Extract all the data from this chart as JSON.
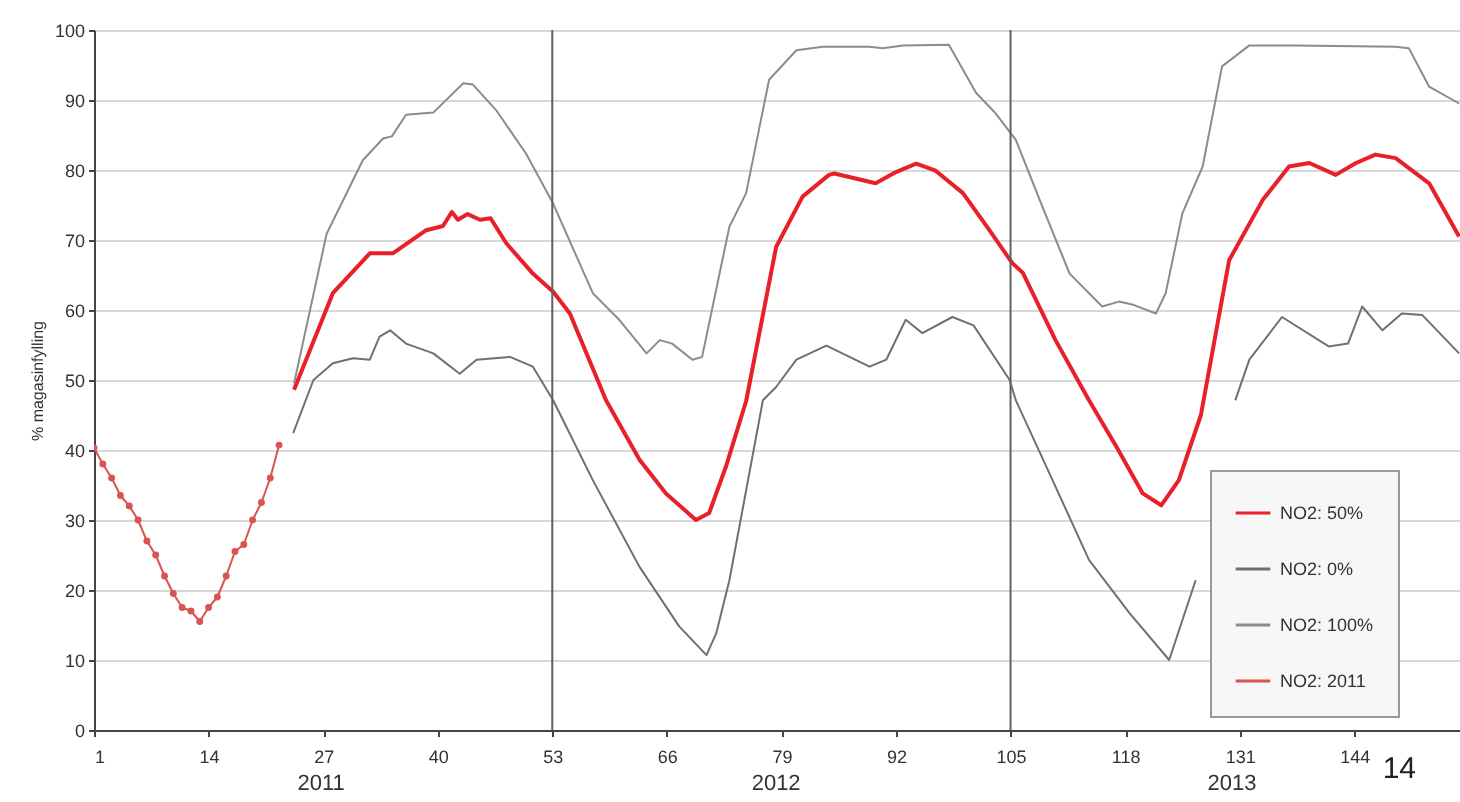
{
  "chart_data": {
    "type": "line",
    "ylabel": "% magasinfylling",
    "xlim": [
      1,
      156
    ],
    "xticks": [
      1,
      14,
      27,
      40,
      53,
      66,
      79,
      92,
      105,
      118,
      131,
      144
    ],
    "ylim": [
      0,
      100
    ],
    "yticks": [
      0,
      10,
      20,
      30,
      40,
      50,
      60,
      70,
      80,
      90,
      100
    ],
    "grid": "y",
    "legend": "bottom right",
    "ref_lines": [
      {
        "axis": "x",
        "value": 53,
        "color": "#606060"
      },
      {
        "axis": "x",
        "value": 105,
        "color": "#606060"
      }
    ],
    "annotations": [
      "2011",
      "2012",
      "2013",
      "14"
    ],
    "series": [
      {
        "name": "NO2: 50%",
        "color": "#e8202a",
        "x": [
          23.7,
          28.1,
          32.3,
          34.9,
          38.7,
          40.6,
          41.6,
          42.3,
          43.4,
          44.8,
          46,
          47.8,
          50.8,
          53.1,
          55,
          59.1,
          62.9,
          65.9,
          69.3,
          70.8,
          72.7,
          75,
          78.4,
          81.4,
          84.4,
          85,
          89.7,
          92,
          94.3,
          96.5,
          99.6,
          102.6,
          105.2,
          106.4,
          110.1,
          113.9,
          117,
          120,
          122.1,
          124.1,
          126.6,
          129.8,
          133.6,
          136.6,
          138.9,
          141.9,
          144.2,
          146.4,
          148.7,
          152.5,
          155.9
        ],
        "values": [
          48.6,
          62.4,
          68.1,
          68.1,
          71.4,
          72,
          74,
          72.9,
          73.7,
          72.9,
          73.1,
          69.5,
          65.2,
          62.6,
          59.5,
          47.1,
          38.6,
          33.8,
          30,
          31,
          37.6,
          47,
          69,
          76.2,
          79.3,
          79.5,
          78.1,
          79.7,
          80.9,
          79.9,
          76.7,
          71.4,
          66.7,
          65.3,
          55.7,
          47.1,
          40.5,
          33.8,
          32.1,
          35.7,
          45,
          67.1,
          75.7,
          80.5,
          81,
          79.3,
          81,
          82.2,
          81.7,
          78.1,
          70.5
        ]
      },
      {
        "name": "NO2: 0%",
        "color": "#707070",
        "x": [
          23.6,
          25.9,
          28.1,
          30.4,
          32.3,
          33.4,
          34.6,
          36.4,
          39.5,
          42.5,
          44.4,
          48.2,
          50.8,
          53.1,
          57.6,
          62.9,
          67.4,
          70.5,
          71.6,
          73.1,
          76.9,
          78.4,
          80.7,
          84.1,
          89,
          90.9,
          93.1,
          95,
          98.4,
          100.8,
          104.9,
          105.6,
          109.4,
          113.9,
          118.5,
          123,
          126,
          129,
          130.5,
          132.1,
          135.8,
          141.1,
          143.3,
          144.9,
          147.2,
          149.4,
          151.7,
          155.9
        ],
        "values": [
          42.4,
          50,
          52.4,
          53.1,
          52.9,
          56.2,
          57.1,
          55.2,
          53.8,
          50.9,
          52.9,
          53.3,
          51.9,
          47.1,
          35.7,
          23.3,
          14.8,
          10.7,
          13.8,
          21.4,
          47.1,
          49,
          52.9,
          54.9,
          51.9,
          52.9,
          58.6,
          56.7,
          59,
          57.8,
          50,
          47.1,
          36.7,
          24.3,
          16.7,
          10,
          21.4,
          null,
          47.1,
          52.9,
          59,
          54.8,
          55.2,
          60.5,
          57.1,
          59.5,
          59.3,
          53.8
        ]
      },
      {
        "name": "NO2: 100%",
        "color": "#8c8c8c",
        "x": [
          23.7,
          27.4,
          31.5,
          33.8,
          34.8,
          36.4,
          39.5,
          42.9,
          44,
          46.6,
          50,
          53.1,
          57.6,
          60.6,
          63.7,
          65.2,
          66.6,
          68.9,
          70,
          73.1,
          75,
          77.6,
          80.7,
          83.7,
          89,
          90.5,
          92.8,
          98,
          101.1,
          103.3,
          105.6,
          108.6,
          111.7,
          115.4,
          117.3,
          118.8,
          121.5,
          122.6,
          124.5,
          126.8,
          129,
          132.1,
          137.4,
          148.7,
          150.2,
          152.5,
          155.9
        ],
        "values": [
          49.5,
          70.9,
          81.4,
          84.5,
          84.8,
          87.9,
          88.2,
          92.4,
          92.2,
          88.6,
          82.4,
          75.2,
          62.4,
          58.6,
          53.8,
          55.7,
          55.2,
          52.9,
          53.3,
          71.9,
          76.7,
          92.9,
          97.1,
          97.6,
          97.6,
          97.4,
          97.8,
          97.9,
          91,
          88.1,
          84.3,
          74.8,
          65.2,
          60.5,
          61.2,
          60.8,
          59.5,
          62.4,
          73.8,
          80.5,
          94.8,
          97.8,
          97.8,
          97.6,
          97.4,
          91.9,
          89.5
        ]
      },
      {
        "name": "NO2: 2011",
        "color": "#d9534f",
        "marker": "circle",
        "x": [
          1,
          2,
          3,
          4,
          5,
          6,
          7,
          8,
          9,
          10,
          11,
          12,
          13,
          14,
          15,
          16,
          17,
          18,
          19,
          20,
          21,
          22
        ],
        "values": [
          40.3,
          38,
          36,
          33.5,
          32,
          30,
          27,
          25,
          22,
          19.5,
          17.5,
          17,
          15.5,
          17.5,
          19,
          22,
          25.5,
          26.5,
          30,
          32.5,
          36,
          40.7
        ]
      }
    ]
  }
}
